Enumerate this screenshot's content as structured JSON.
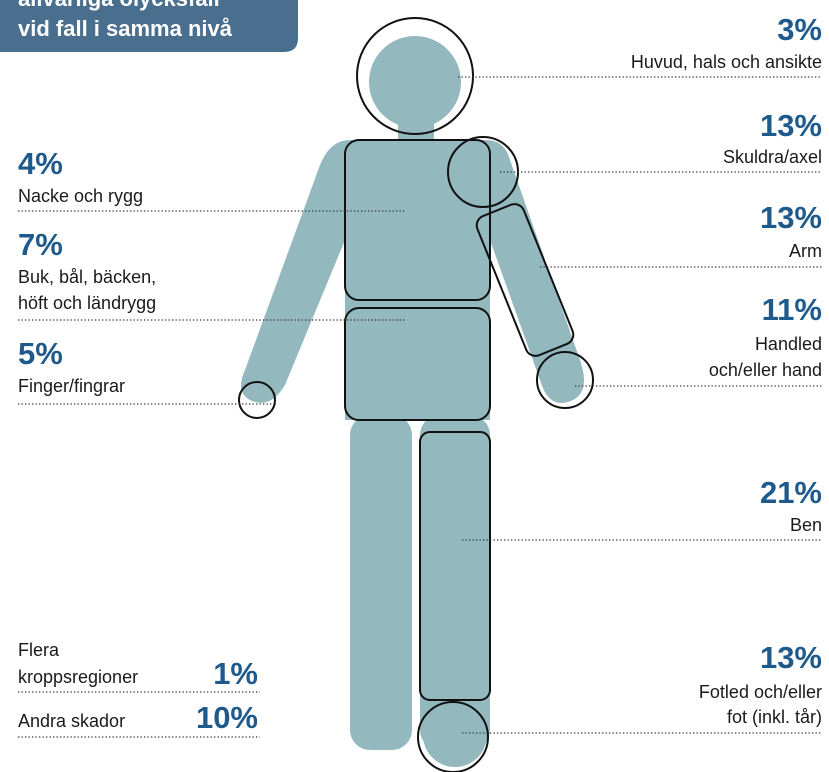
{
  "header": {
    "title": [
      "allvarliga olycksfall",
      "vid fall i samma nivå"
    ]
  },
  "regions": [
    {
      "value": "3%",
      "label": [
        "Huvud, hals och ansikte"
      ]
    },
    {
      "value": "13%",
      "label": [
        "Skuldra/axel"
      ]
    },
    {
      "value": "13%",
      "label": [
        "Arm"
      ]
    },
    {
      "value": "11%",
      "label": [
        "Handled",
        "och/eller hand"
      ]
    },
    {
      "value": "21%",
      "label": [
        "Ben"
      ]
    },
    {
      "value": "13%",
      "label": [
        "Fotled och/eller",
        "fot (inkl. tår)"
      ]
    },
    {
      "value": "4%",
      "label": [
        "Nacke och rygg"
      ]
    },
    {
      "value": "7%",
      "label": [
        "Buk, bål, bäcken,",
        "höft och ländrygg"
      ]
    },
    {
      "value": "5%",
      "label": [
        "Finger/fingrar"
      ]
    },
    {
      "value": "1%",
      "label": [
        "Flera",
        "kroppsregioner"
      ]
    },
    {
      "value": "10%",
      "label": [
        "Andra skador"
      ]
    }
  ]
}
